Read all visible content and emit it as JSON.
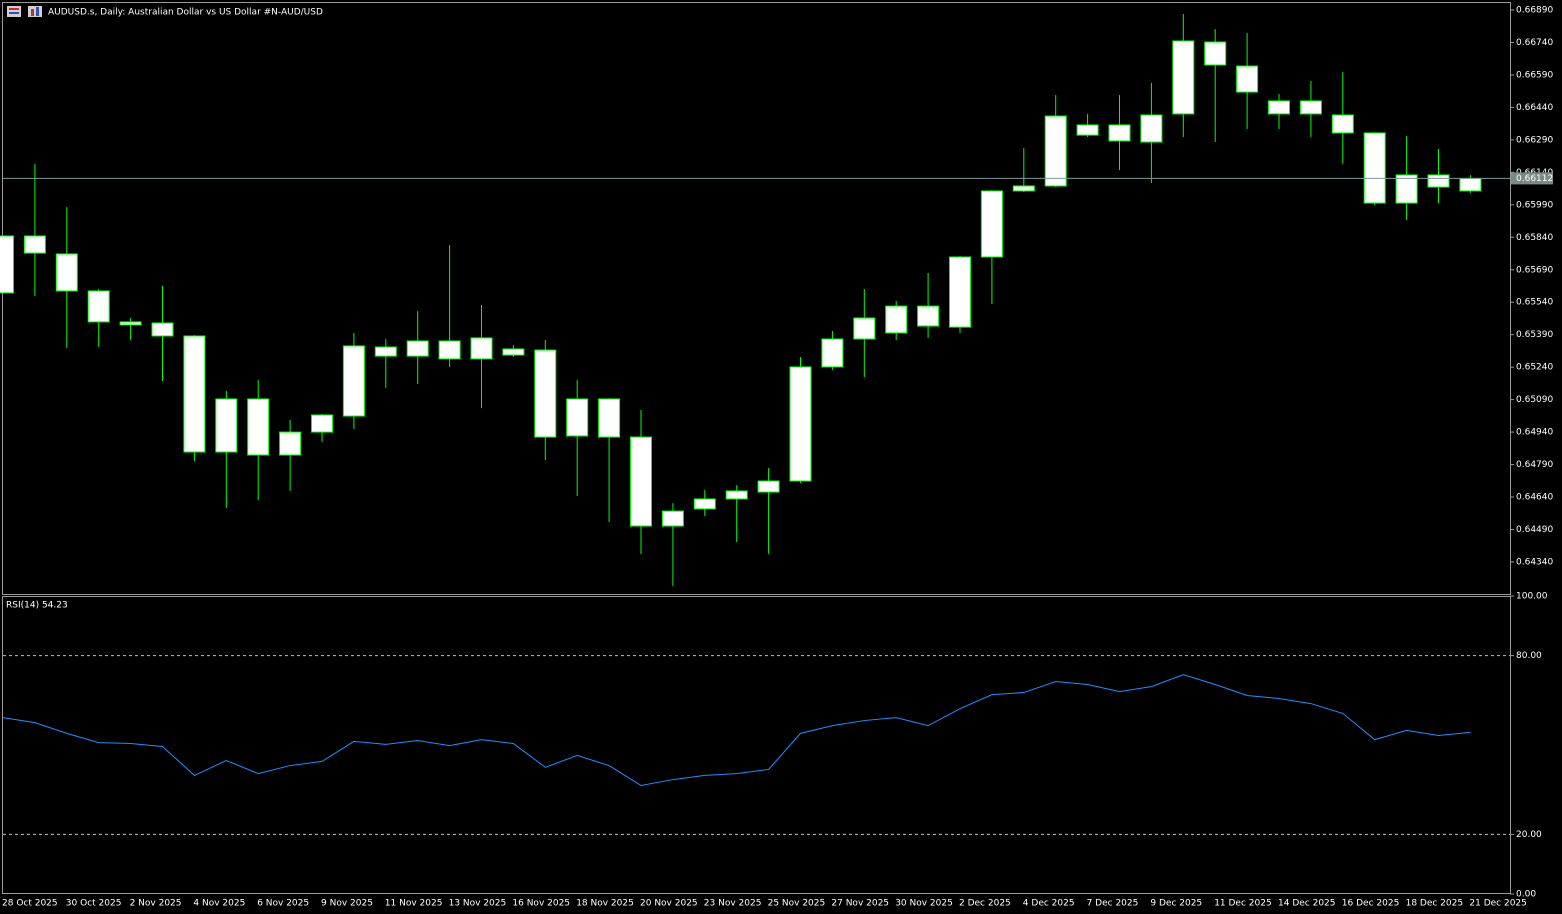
{
  "chart_data": [
    {
      "type": "candlestick",
      "title": "AUDUSD.s, Daily:  Australian Dollar vs US Dollar #N-AUD/USD",
      "open": [
        0.65583,
        0.65846,
        0.65763,
        0.65592,
        0.65449,
        0.65444,
        0.65384,
        0.64848,
        0.65093,
        0.64834,
        0.6494,
        0.65014,
        0.65291,
        0.65361,
        0.65278,
        0.65375,
        0.65296,
        0.65319,
        0.64922,
        0.65093,
        0.64917,
        0.64506,
        0.64585,
        0.64631,
        0.64663,
        0.64714,
        0.65241,
        0.6537,
        0.65398,
        0.65522,
        0.65425,
        0.65749,
        0.66054,
        0.66077,
        0.66359,
        0.66285,
        0.6628,
        0.6641,
        0.66742,
        0.66631,
        0.6647,
        0.6641,
        0.66405,
        0.66322,
        0.65998,
        0.66128,
        0.66054
      ],
      "high": [
        0.65846,
        0.66179,
        0.6598,
        0.65601,
        0.65467,
        0.65615,
        0.65388,
        0.6513,
        0.65181,
        0.64996,
        0.65024,
        0.65398,
        0.6537,
        0.65499,
        0.65804,
        0.65527,
        0.65342,
        0.65365,
        0.65181,
        0.65097,
        0.65042,
        0.64612,
        0.64672,
        0.64695,
        0.64774,
        0.65287,
        0.65407,
        0.65601,
        0.65546,
        0.65675,
        0.65753,
        0.66058,
        0.66252,
        0.66497,
        0.6641,
        0.66497,
        0.66553,
        0.66872,
        0.66802,
        0.66784,
        0.66502,
        0.66562,
        0.66604,
        0.66326,
        0.66308,
        0.66248,
        0.66128
      ],
      "low": [
        0.65583,
        0.65569,
        0.65328,
        0.65333,
        0.65365,
        0.65176,
        0.64806,
        0.64589,
        0.64626,
        0.64668,
        0.64894,
        0.64954,
        0.65144,
        0.65162,
        0.65241,
        0.65051,
        0.65287,
        0.64811,
        0.64645,
        0.64525,
        0.64377,
        0.64229,
        0.64552,
        0.64432,
        0.64377,
        0.64705,
        0.65227,
        0.65194,
        0.65365,
        0.65375,
        0.65398,
        0.65532,
        0.66049,
        0.66072,
        0.66303,
        0.66151,
        0.66091,
        0.66303,
        0.6628,
        0.6634,
        0.6634,
        0.66303,
        0.66179,
        0.65989,
        0.6592,
        0.65998,
        0.66045
      ],
      "close": [
        0.65846,
        0.65767,
        0.65592,
        0.65449,
        0.65435,
        0.65384,
        0.64848,
        0.65093,
        0.64834,
        0.6494,
        0.65019,
        0.65338,
        0.65333,
        0.65291,
        0.65361,
        0.65278,
        0.65324,
        0.64917,
        0.65093,
        0.64917,
        0.64506,
        0.64575,
        0.64631,
        0.64668,
        0.64714,
        0.65241,
        0.6537,
        0.65467,
        0.65522,
        0.6543,
        0.65749,
        0.66054,
        0.66077,
        0.664,
        0.66312,
        0.66359,
        0.66405,
        0.66747,
        0.66636,
        0.66511,
        0.6641,
        0.6647,
        0.66322,
        0.65998,
        0.66128,
        0.66072,
        0.66112
      ],
      "color": "#00ff00",
      "body_color": "#ffffff",
      "price_line": {
        "value": 0.66112,
        "label": "0.66112"
      },
      "ylim": [
        0.64192,
        0.66927
      ],
      "yticks": [
        {
          "value": 0.6689,
          "label": "0.66890"
        },
        {
          "value": 0.6674,
          "label": "0.66740"
        },
        {
          "value": 0.6659,
          "label": "0.66590"
        },
        {
          "value": 0.6644,
          "label": "0.66440"
        },
        {
          "value": 0.6629,
          "label": "0.66290"
        },
        {
          "value": 0.6614,
          "label": "0.66140"
        },
        {
          "value": 0.6599,
          "label": "0.65990"
        },
        {
          "value": 0.6584,
          "label": "0.65840"
        },
        {
          "value": 0.6569,
          "label": "0.65690"
        },
        {
          "value": 0.6554,
          "label": "0.65540"
        },
        {
          "value": 0.6539,
          "label": "0.65390"
        },
        {
          "value": 0.6524,
          "label": "0.65240"
        },
        {
          "value": 0.6509,
          "label": "0.65090"
        },
        {
          "value": 0.6494,
          "label": "0.64940"
        },
        {
          "value": 0.6479,
          "label": "0.64790"
        },
        {
          "value": 0.6464,
          "label": "0.64640"
        },
        {
          "value": 0.6449,
          "label": "0.64490"
        },
        {
          "value": 0.6434,
          "label": "0.64340"
        }
      ]
    },
    {
      "type": "line",
      "title": "RSI(14) 54.23",
      "categories": [
        "28 Oct 2025",
        null,
        "30 Oct 2025",
        null,
        "2 Nov 2025",
        null,
        "4 Nov 2025",
        null,
        "6 Nov 2025",
        null,
        "9 Nov 2025",
        null,
        "11 Nov 2025",
        null,
        "13 Nov 2025",
        null,
        "16 Nov 2025",
        null,
        "18 Nov 2025",
        null,
        "20 Nov 2025",
        null,
        "23 Nov 2025",
        null,
        "25 Nov 2025",
        null,
        "27 Nov 2025",
        null,
        "30 Nov 2025",
        null,
        "2 Dec 2025",
        null,
        "4 Dec 2025",
        null,
        "7 Dec 2025",
        null,
        "9 Dec 2025",
        null,
        "11 Dec 2025",
        null,
        "14 Dec 2025",
        null,
        "16 Dec 2025",
        null,
        "18 Dec 2025",
        null,
        "21 Dec 2025"
      ],
      "series": [
        {
          "name": "RSI(14)",
          "color": "#1e90ff",
          "values": [
            59.2,
            57.5,
            53.9,
            50.8,
            50.5,
            49.5,
            39.8,
            44.8,
            40.4,
            43.1,
            44.5,
            51.2,
            50.2,
            51.5,
            49.8,
            51.8,
            50.5,
            42.5,
            46.5,
            43.1,
            36.4,
            38.4,
            39.8,
            40.4,
            41.8,
            53.9,
            56.5,
            58.2,
            59.2,
            56.5,
            62.2,
            66.9,
            67.6,
            71.3,
            70.3,
            67.9,
            69.6,
            73.6,
            70.3,
            66.6,
            65.6,
            63.9,
            60.6,
            51.8,
            54.9,
            53.2,
            54.23
          ]
        }
      ],
      "levels": [
        80,
        20
      ],
      "ylim": [
        0,
        100
      ],
      "yticks": [
        {
          "value": 100,
          "label": "100.00"
        },
        {
          "value": 80,
          "label": "80.00"
        },
        {
          "value": 20,
          "label": "20.00"
        },
        {
          "value": 0,
          "label": "0.00"
        }
      ]
    }
  ]
}
